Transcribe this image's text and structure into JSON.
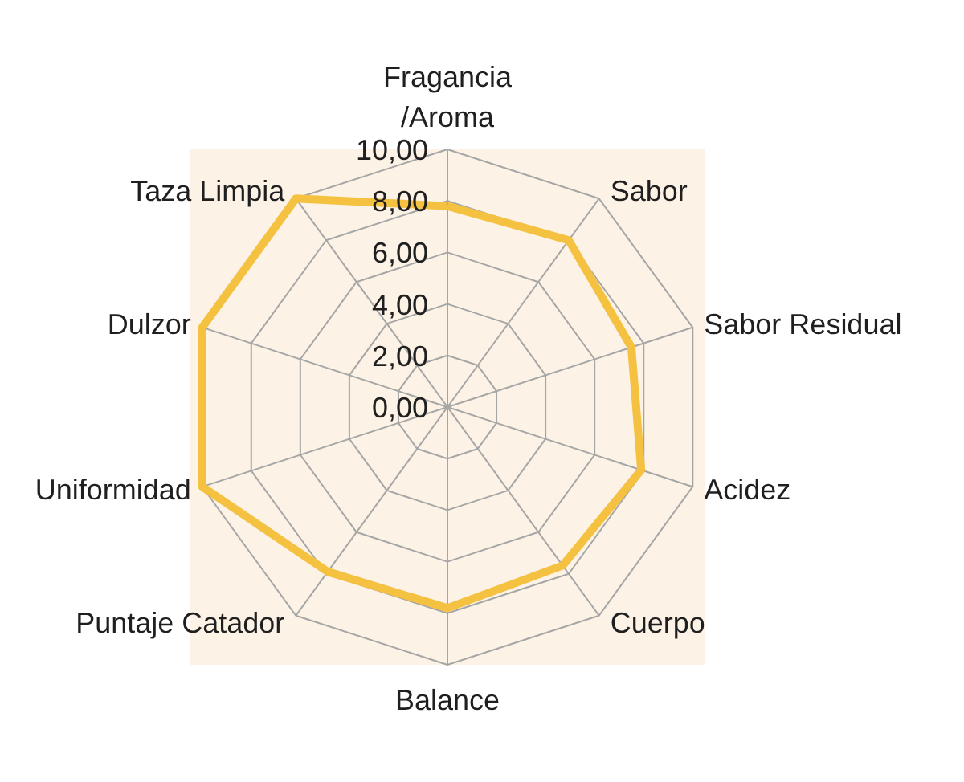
{
  "chart_data": {
    "type": "radar",
    "categories": [
      "Fragancia /Aroma",
      "Sabor",
      "Sabor Residual",
      "Acidez",
      "Cuerpo",
      "Balance",
      "Puntaje Catador",
      "Uniformidad",
      "Dulzor",
      "Taza Limpia"
    ],
    "series": [
      {
        "color": "#f4c141",
        "values": [
          7.8,
          8.0,
          7.5,
          7.9,
          7.6,
          7.8,
          7.9,
          10,
          10,
          10
        ]
      }
    ],
    "ylim": [
      0,
      10
    ],
    "yticks": [
      {
        "value": 0,
        "label": "0,00"
      },
      {
        "value": 2,
        "label": "2,00"
      },
      {
        "value": 4,
        "label": "4,00"
      },
      {
        "value": 6,
        "label": "6,00"
      },
      {
        "value": 8,
        "label": "8,00"
      },
      {
        "value": 10,
        "label": "10,00"
      }
    ],
    "grid": true
  }
}
